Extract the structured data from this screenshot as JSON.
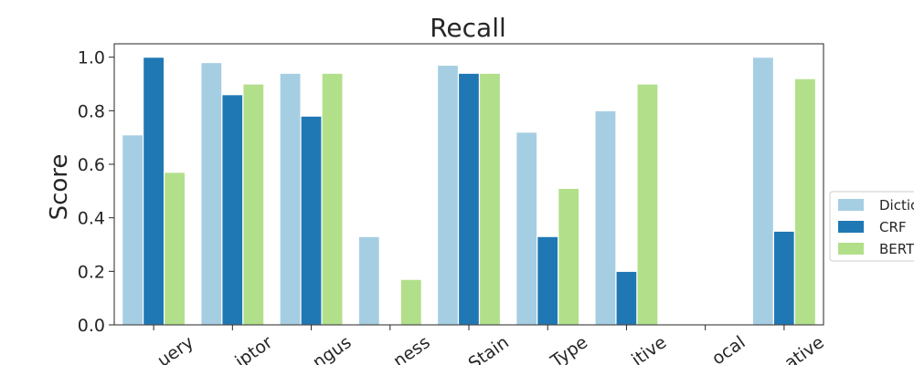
{
  "chart_data": {
    "type": "bar",
    "title": "Recall",
    "xlabel": "",
    "ylabel": "Score",
    "ylim": [
      0,
      1.05
    ],
    "yticks": [
      "0.0",
      "0.2",
      "0.4",
      "0.6",
      "0.8",
      "1.0"
    ],
    "categories": [
      "Query",
      "Descriptor",
      "Fungus",
      "Thickness",
      "Stain",
      "Type",
      "Positive",
      "Focal",
      "Negative"
    ],
    "category_labels": [
      "uery",
      "iptor",
      "ngus",
      "ness",
      "Stain",
      "Type",
      "itive",
      "ocal",
      "ative"
    ],
    "series": [
      {
        "name": "Dictionary",
        "legend_label": "Dictic",
        "color": "#a6cee3",
        "values": [
          0.71,
          0.98,
          0.94,
          0.33,
          0.97,
          0.72,
          0.8,
          0.0,
          1.0
        ]
      },
      {
        "name": "CRF",
        "legend_label": "CRF",
        "color": "#1f78b4",
        "values": [
          1.0,
          0.86,
          0.78,
          0.0,
          0.94,
          0.33,
          0.2,
          0.0,
          0.35
        ]
      },
      {
        "name": "BERT",
        "legend_label": "BERT",
        "color": "#b2df8a",
        "values": [
          0.57,
          0.9,
          0.94,
          0.17,
          0.94,
          0.51,
          0.9,
          0.0,
          0.92
        ]
      }
    ],
    "grid": false,
    "legend_position": "right"
  }
}
